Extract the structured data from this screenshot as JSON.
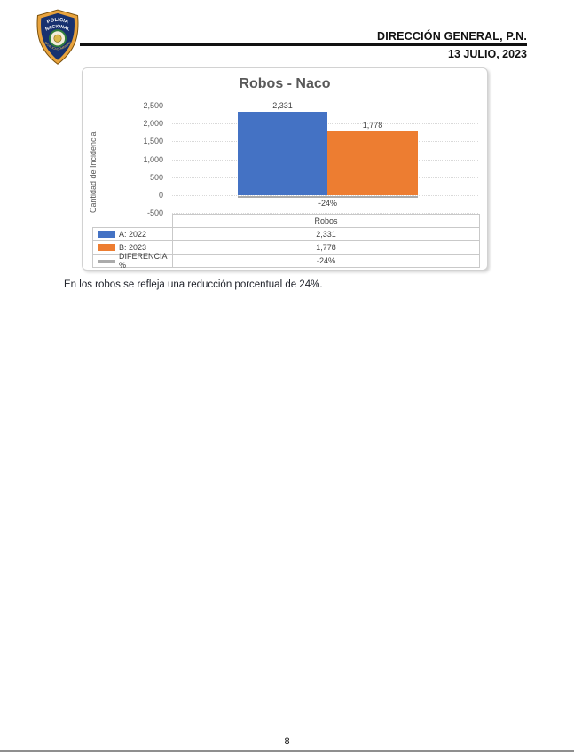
{
  "header": {
    "organization": "DIRECCIÓN GENERAL, P.N.",
    "date": "13 JULIO, 2023",
    "logo_text_line1": "POLICIA",
    "logo_text_line2": "NACIONAL",
    "logo_text_bottom": "REPUBLICA DOMINICANA"
  },
  "chart_data": {
    "type": "bar",
    "title": "Robos - Naco",
    "xlabel": "",
    "ylabel": "Cantidad de Incidencia",
    "categories": [
      "Robos"
    ],
    "ylim": [
      -500,
      2500
    ],
    "yticks": [
      "2,500",
      "2,000",
      "1,500",
      "1,000",
      "500",
      "0",
      "-500"
    ],
    "grid": true,
    "legend_position": "data-table-bottom-left",
    "series": [
      {
        "name": "A: 2022",
        "type": "bar",
        "color": "#4472C4",
        "values": [
          2331
        ],
        "labels": [
          "2,331"
        ]
      },
      {
        "name": "B: 2023",
        "type": "bar",
        "color": "#ED7D31",
        "values": [
          1778
        ],
        "labels": [
          "1,778"
        ]
      },
      {
        "name": "DIFERENCIA %",
        "type": "line",
        "color": "#ABABAB",
        "values": [
          -24
        ],
        "labels": [
          "-24%"
        ]
      }
    ]
  },
  "body": {
    "paragraph": "En los robos se refleja una reducción porcentual de 24%."
  },
  "footer": {
    "page_number": "8"
  }
}
